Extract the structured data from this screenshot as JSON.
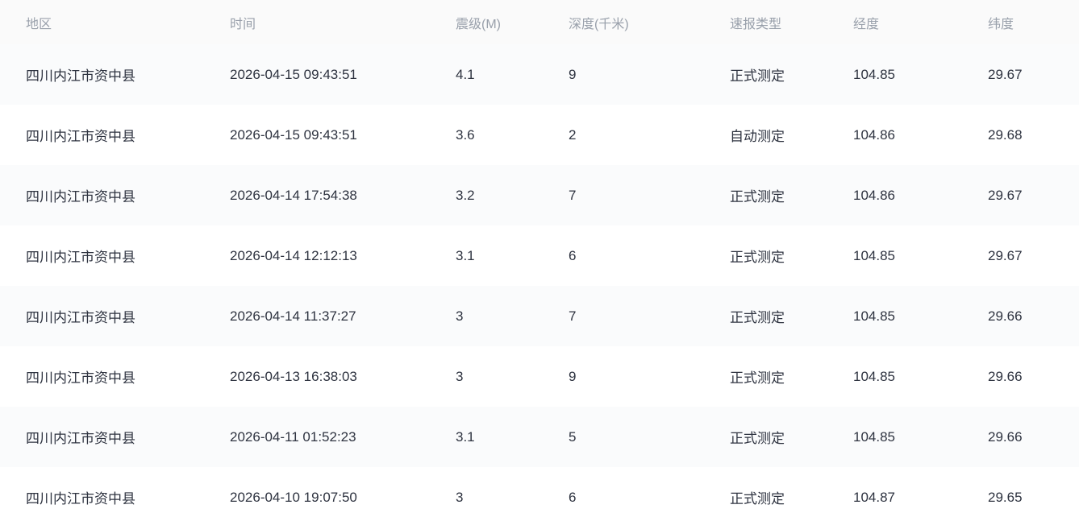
{
  "table": {
    "columns": [
      "地区",
      "时间",
      "震级(M)",
      "深度(千米)",
      "速报类型",
      "经度",
      "纬度"
    ],
    "column_keys": [
      "region",
      "time",
      "magnitude",
      "depth",
      "report-type",
      "longitude",
      "latitude"
    ],
    "rows": [
      [
        "四川内江市资中县",
        "2026-04-15 09:43:51",
        "4.1",
        "9",
        "正式测定",
        "104.85",
        "29.67"
      ],
      [
        "四川内江市资中县",
        "2026-04-15 09:43:51",
        "3.6",
        "2",
        "自动测定",
        "104.86",
        "29.68"
      ],
      [
        "四川内江市资中县",
        "2026-04-14 17:54:38",
        "3.2",
        "7",
        "正式测定",
        "104.86",
        "29.67"
      ],
      [
        "四川内江市资中县",
        "2026-04-14 12:12:13",
        "3.1",
        "6",
        "正式测定",
        "104.85",
        "29.67"
      ],
      [
        "四川内江市资中县",
        "2026-04-14 11:37:27",
        "3",
        "7",
        "正式测定",
        "104.85",
        "29.66"
      ],
      [
        "四川内江市资中县",
        "2026-04-13 16:38:03",
        "3",
        "9",
        "正式测定",
        "104.85",
        "29.66"
      ],
      [
        "四川内江市资中县",
        "2026-04-11 01:52:23",
        "3.1",
        "5",
        "正式测定",
        "104.85",
        "29.66"
      ],
      [
        "四川内江市资中县",
        "2026-04-10 19:07:50",
        "3",
        "6",
        "正式测定",
        "104.87",
        "29.65"
      ]
    ],
    "colors": {
      "header_text": "#99a0ab",
      "header_background": "#fafafa",
      "row_text": "#2e3340",
      "stripe_background": "#fafbfc"
    }
  }
}
